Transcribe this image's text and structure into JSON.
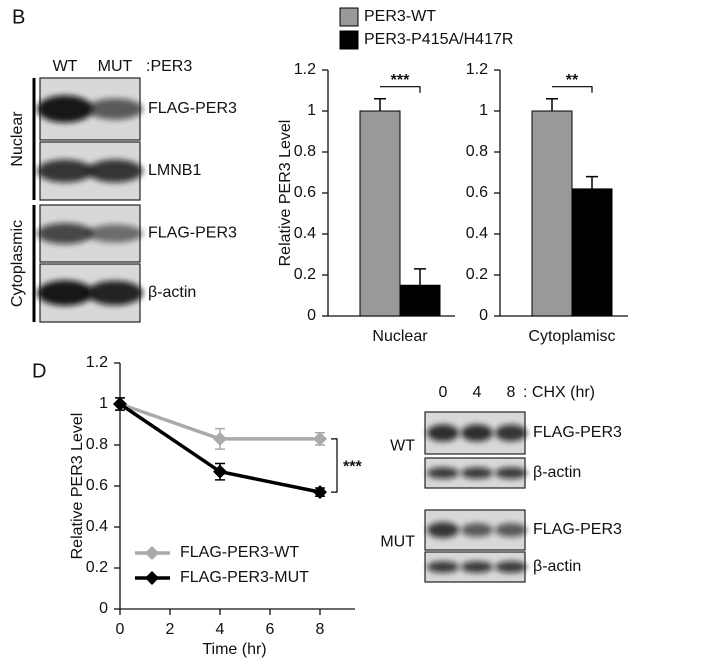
{
  "panel_labels": [
    "B",
    "D"
  ],
  "blot_b": {
    "columns": [
      "WT",
      "MUT"
    ],
    "column_suffix": ":PER3",
    "groups": [
      {
        "name": "Nuclear",
        "rows": [
          "FLAG-PER3",
          "LMNB1"
        ]
      },
      {
        "name": "Cytoplasmic",
        "rows": [
          "FLAG-PER3",
          "β-actin"
        ]
      }
    ]
  },
  "blot_d": {
    "columns": [
      "0",
      "4",
      "8"
    ],
    "column_suffix": ": CHX (hr)",
    "groups": [
      {
        "name": "WT",
        "rows": [
          "FLAG-PER3",
          "β-actin"
        ]
      },
      {
        "name": "MUT",
        "rows": [
          "FLAG-PER3",
          "β-actin"
        ]
      }
    ]
  },
  "chart_data": [
    {
      "type": "bar",
      "ylabel": "Relative PER3 Level",
      "categories": [
        "Nuclear"
      ],
      "series": [
        {
          "name": "PER3-WT",
          "color": "#999999",
          "values": [
            1.0
          ],
          "errors": [
            0.06
          ]
        },
        {
          "name": "PER3-P415A/H417R",
          "color": "#000000",
          "values": [
            0.15
          ],
          "errors": [
            0.08
          ]
        }
      ],
      "ylim": [
        0,
        1.2
      ],
      "yticks": [
        0,
        0.2,
        0.4,
        0.6,
        0.8,
        1,
        1.2
      ],
      "significance": "***"
    },
    {
      "type": "bar",
      "categories": [
        "Cytoplamisc"
      ],
      "series": [
        {
          "color": "#999999",
          "values": [
            1.0
          ],
          "errors": [
            0.06
          ]
        },
        {
          "color": "#000000",
          "values": [
            0.62
          ],
          "errors": [
            0.06
          ]
        }
      ],
      "ylim": [
        0,
        1.2
      ],
      "yticks": [
        0,
        0.2,
        0.4,
        0.6,
        0.8,
        1,
        1.2
      ],
      "significance": "**"
    },
    {
      "type": "line",
      "xlabel": "Time (hr)",
      "ylabel": "Relative PER3 Level",
      "x": [
        0,
        4,
        8
      ],
      "series": [
        {
          "name": "FLAG-PER3-WT",
          "color": "#aaaaaa",
          "values": [
            1.0,
            0.83,
            0.83
          ],
          "errors": [
            0.03,
            0.05,
            0.03
          ]
        },
        {
          "name": "FLAG-PER3-MUT",
          "color": "#000000",
          "values": [
            1.0,
            0.67,
            0.57
          ],
          "errors": [
            0.03,
            0.04,
            0.02
          ]
        }
      ],
      "xlim": [
        0,
        9.4
      ],
      "xticks": [
        0,
        2,
        4,
        6,
        8
      ],
      "ylim": [
        0,
        1.2
      ],
      "yticks": [
        0,
        0.2,
        0.4,
        0.6,
        0.8,
        1,
        1.2
      ],
      "significance": "***"
    }
  ]
}
